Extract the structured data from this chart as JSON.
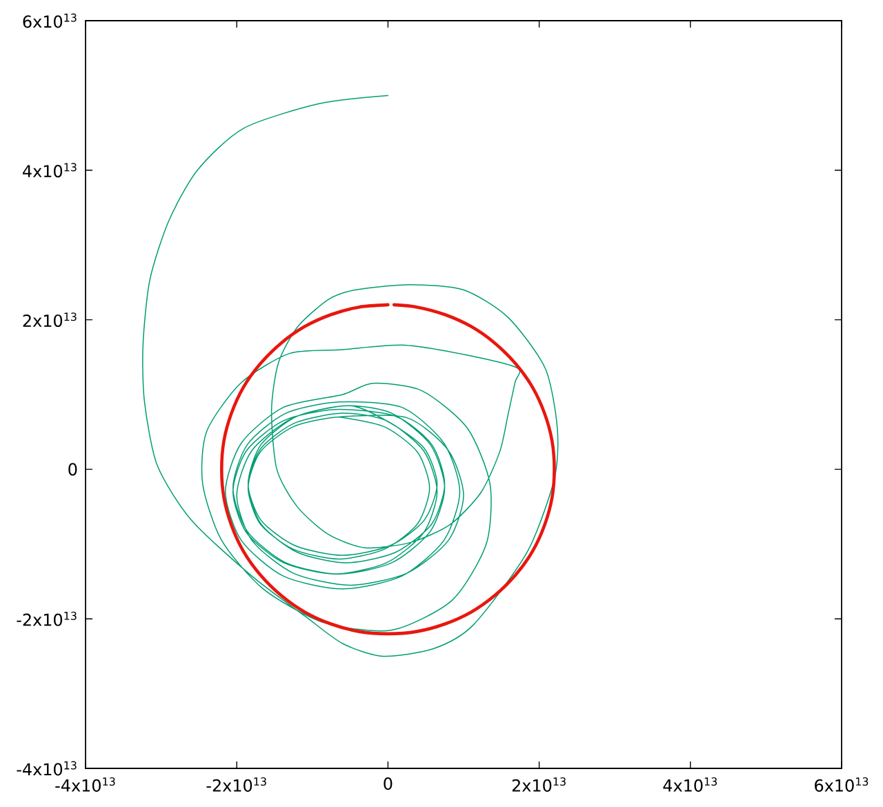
{
  "chart_data": {
    "type": "line",
    "xlim": [
      -40000000000000.0,
      60000000000000.0
    ],
    "ylim": [
      -40000000000000.0,
      60000000000000.0
    ],
    "xticks": [
      {
        "value": -40000000000000.0,
        "label": "-4x10$^{13}$"
      },
      {
        "value": -20000000000000.0,
        "label": "-2x10$^{13}$"
      },
      0,
      {
        "value": 20000000000000.0,
        "label": "2x10$^{13}$"
      },
      {
        "value": 40000000000000.0,
        "label": "4x10$^{13}$"
      },
      {
        "value": 60000000000000.0,
        "label": "6x10$^{13}$"
      }
    ],
    "yticks": [
      {
        "value": -40000000000000.0,
        "label": "-4x10$^{13}$"
      },
      {
        "value": -20000000000000.0,
        "label": "-2x10$^{13}$"
      },
      0,
      {
        "value": 20000000000000.0,
        "label": "2x10$^{13}$"
      },
      {
        "value": 40000000000000.0,
        "label": "4x10$^{13}$"
      },
      {
        "value": 60000000000000.0,
        "label": "6x10$^{13}$"
      }
    ],
    "series": [
      {
        "color": "#009e73",
        "x": [
          0,
          -9100000000000.0,
          -19100000000000.0,
          -25200000000000.0,
          -29000000000000.0,
          -31500000000000.0,
          -32400000000000.0,
          -32200000000000.0,
          -30500000000000.0,
          -26000000000000.0,
          -18100000000000.0,
          -10900000000000.0,
          -6000000000000.0,
          -700000000000.0,
          6000000000000.0,
          11300000000000.0,
          18400000000000.0,
          22000000000000.0,
          22400000000000.0,
          20800000000000.0,
          15900000000000.0,
          10000000000000.0,
          2900000000000.0,
          -4300000000000.0,
          -7900000000000.0,
          -12000000000000.0,
          -14500000000000.0,
          -15400000000000.0,
          -14700000000000.0,
          -12000000000000.0,
          -7900000000000.0,
          -3000000000000.0,
          2900000000000.0,
          8200000000000.0,
          12300000000000.0,
          14800000000000.0,
          15900000000000.0,
          16800000000000.0,
          17200000000000.0,
          11300000000000.0,
          2300000000000.0,
          -6100000000000.0,
          -13000000000000.0,
          -19500000000000.0,
          -24000000000000.0,
          -24500000000000.0,
          -22000000000000.0,
          -16500000000000.0,
          -8500000000000.0,
          500000000000.0,
          8500000000000.0,
          13000000000000.0,
          13500000000000.0,
          10500000000000.0,
          4500000000000.0,
          -2000000000000.0,
          -6000000000000.0,
          -13800000000000.0,
          -19400000000000.0,
          -21500000000000.0,
          -19400000000000.0,
          -13800000000000.0,
          -6000000000000.0,
          1800000000000.0,
          7400000000000.0,
          9500000000000.0,
          7400000000000.0,
          1800000000000.0,
          -6500000000000.0,
          -13500000000000.0,
          -18600000000000.0,
          -20500000000000.0,
          -18600000000000.0,
          -13500000000000.0,
          -6500000000000.0,
          500000000000.0,
          5600000000000.0,
          7500000000000.0,
          5600000000000.0,
          500000000000.0,
          -5500000000000.0,
          -12000000000000.0,
          -16800000000000.0,
          -18500000000000.0,
          -16800000000000.0,
          -12000000000000.0,
          -5500000000000.0,
          1000000000000.0,
          5800000000000.0,
          7500000000000.0,
          5800000000000.0,
          1000000000000.0,
          -7000000000000.0,
          -13800000000000.0,
          -18700000000000.0,
          -20500000000000.0,
          -18700000000000.0,
          -13800000000000.0,
          -7000000000000.0,
          -200000000000.0,
          4700000000000.0,
          6500000000000.0,
          4700000000000.0,
          -200000000000.0,
          -6000000000000.0,
          -12300000000000.0,
          -16800000000000.0,
          -18500000000000.0,
          -16800000000000.0,
          -12300000000000.0,
          -6000000000000.0,
          300000000000.0,
          4800000000000.0,
          6500000000000.0,
          4800000000000.0,
          300000000000.0,
          -5000000000000.0,
          -12500000000000.0,
          -18000000000000.0,
          -20000000000000.0,
          -18000000000000.0,
          -12500000000000.0,
          -5000000000000.0,
          2500000000000.0,
          8000000000000.0,
          10000000000000.0,
          8000000000000.0,
          2500000000000.0,
          -6500000000000.0,
          -12500000000000.0,
          -16900000000000.0,
          -18500000000000.0,
          -16900000000000.0,
          -12500000000000.0,
          -6500000000000.0,
          -500000000000.0,
          3900000000000.0,
          5500000000000.0,
          3900000000000.0,
          -500000000000.0,
          -6500000000000.0
        ],
        "values": [
          50000000000000.0,
          48900000000000.0,
          45600000000000.0,
          40000000000000.0,
          33200000000000.0,
          25300000000000.0,
          16600000000000.0,
          9000000000000.0,
          500000000000.0,
          -6800000000000.0,
          -14200000000000.0,
          -19700000000000.0,
          -23300000000000.0,
          -25000000000000.0,
          -24000000000000.0,
          -20800000000000.0,
          -11100000000000.0,
          -1300000000000.0,
          5500000000000.0,
          13500000000000.0,
          20300000000000.0,
          24000000000000.0,
          24700000000000.0,
          24000000000000.0,
          22700000000000.0,
          19000000000000.0,
          14200000000000.0,
          7900000000000.0,
          0,
          -5000000000000.0,
          -8700000000000.0,
          -10500000000000.0,
          -9800000000000.0,
          -7400000000000.0,
          -3100000000000.0,
          2400000000000.0,
          7400000000000.0,
          11600000000000.0,
          13500000000000.0,
          15100000000000.0,
          16600000000000.0,
          16000000000000.0,
          15500000000000.0,
          11500000000000.0,
          5000000000000.0,
          -2000000000000.0,
          -9500000000000.0,
          -16000000000000.0,
          -20500000000000.0,
          -21500000000000.0,
          -17500000000000.0,
          -10000000000000.0,
          -2000000000000.0,
          5500000000000.0,
          10500000000000.0,
          11500000000000.0,
          10000000000000.0,
          8300000000000.0,
          3500000000000.0,
          -3000000000000.0,
          -9500000000000.0,
          -14300000000000.0,
          -16000000000000.0,
          -14300000000000.0,
          -9500000000000.0,
          -3000000000000.0,
          3500000000000.0,
          8300000000000.0,
          9000000000000.0,
          7500000000000.0,
          3300000000000.0,
          -2500000000000.0,
          -8300000000000.0,
          -12500000000000.0,
          -14000000000000.0,
          -12500000000000.0,
          -8300000000000.0,
          -2500000000000.0,
          3300000000000.0,
          7500000000000.0,
          8500000000000.0,
          7100000000000.0,
          3300000000000.0,
          -2000000000000.0,
          -7300000000000.0,
          -11100000000000.0,
          -12500000000000.0,
          -11100000000000.0,
          -7300000000000.0,
          -2000000000000.0,
          3300000000000.0,
          7100000000000.0,
          8000000000000.0,
          6500000000000.0,
          2500000000000.0,
          -3000000000000.0,
          -8500000000000.0,
          -12500000000000.0,
          -14000000000000.0,
          -12500000000000.0,
          -8500000000000.0,
          -3000000000000.0,
          2500000000000.0,
          6500000000000.0,
          7500000000000.0,
          6200000000000.0,
          2800000000000.0,
          -2000000000000.0,
          -6800000000000.0,
          -10200000000000.0,
          -11500000000000.0,
          -10200000000000.0,
          -6800000000000.0,
          -2000000000000.0,
          2800000000000.0,
          6200000000000.0,
          8500000000000.0,
          6900000000000.0,
          2500000000000.0,
          -3500000000000.0,
          -9500000000000.0,
          -13900000000000.0,
          -15500000000000.0,
          -13900000000000.0,
          -9500000000000.0,
          -3500000000000.0,
          2500000000000.0,
          6900000000000.0,
          7000000000000.0,
          5700000000000.0,
          2300000000000.0,
          -2500000000000.0,
          -7300000000000.0,
          -10700000000000.0,
          -12000000000000.0,
          -10700000000000.0,
          -7300000000000.0,
          -2500000000000.0,
          2300000000000.0,
          5700000000000.0,
          7000000000000.0
        ]
      },
      {
        "color": "#e8170f",
        "x": [
          0,
          -3800000000000.0,
          -7500000000000.0,
          -11000000000000.0,
          -14100000000000.0,
          -16900000000000.0,
          -19100000000000.0,
          -20700000000000.0,
          -21700000000000.0,
          -22000000000000.0,
          -21700000000000.0,
          -20700000000000.0,
          -19100000000000.0,
          -16900000000000.0,
          -14100000000000.0,
          -11000000000000.0,
          -7500000000000.0,
          -3800000000000.0,
          0,
          3800000000000.0,
          7500000000000.0,
          11000000000000.0,
          14100000000000.0,
          16900000000000.0,
          19100000000000.0,
          20700000000000.0,
          21700000000000.0,
          22000000000000.0,
          21700000000000.0,
          20700000000000.0,
          19100000000000.0,
          16900000000000.0,
          14100000000000.0,
          11000000000000.0,
          7500000000000.0,
          3800000000000.0,
          800000000000.0
        ],
        "values": [
          22000000000000.0,
          21700000000000.0,
          20700000000000.0,
          19100000000000.0,
          16900000000000.0,
          14100000000000.0,
          11000000000000.0,
          7500000000000.0,
          3800000000000.0,
          0,
          -3800000000000.0,
          -7500000000000.0,
          -11000000000000.0,
          -14100000000000.0,
          -16900000000000.0,
          -19100000000000.0,
          -20700000000000.0,
          -21700000000000.0,
          -22000000000000.0,
          -21700000000000.0,
          -20700000000000.0,
          -19100000000000.0,
          -16900000000000.0,
          -14100000000000.0,
          -11000000000000.0,
          -7500000000000.0,
          -3800000000000.0,
          0,
          3800000000000.0,
          7500000000000.0,
          11000000000000.0,
          14100000000000.0,
          16900000000000.0,
          19100000000000.0,
          20700000000000.0,
          21700000000000.0,
          22000000000000.0
        ]
      }
    ]
  }
}
